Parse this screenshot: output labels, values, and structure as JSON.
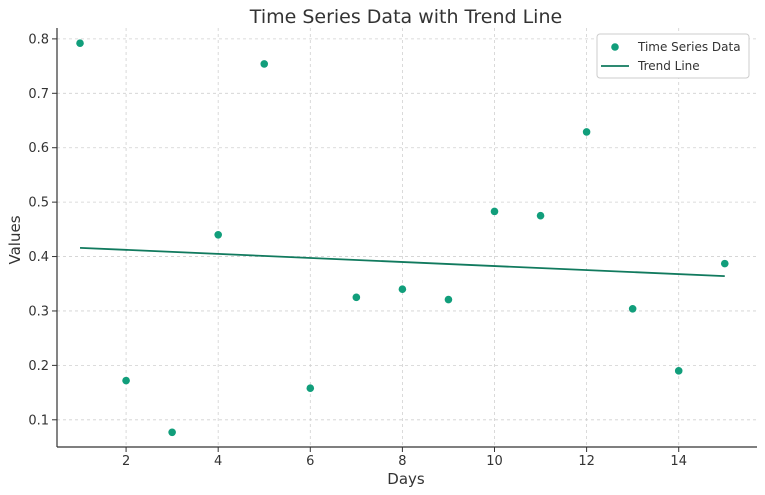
{
  "chart_data": {
    "type": "scatter",
    "title": "Time Series Data with Trend Line",
    "xlabel": "Days",
    "ylabel": "Values",
    "xlim": [
      0.5,
      15.7
    ],
    "ylim": [
      0.05,
      0.82
    ],
    "xticks": [
      2,
      4,
      6,
      8,
      10,
      12,
      14
    ],
    "yticks": [
      0.1,
      0.2,
      0.3,
      0.4,
      0.5,
      0.6,
      0.7,
      0.8
    ],
    "xtick_labels": [
      "2",
      "4",
      "6",
      "8",
      "10",
      "12",
      "14"
    ],
    "ytick_labels": [
      "0.1",
      "0.2",
      "0.3",
      "0.4",
      "0.5",
      "0.6",
      "0.7",
      "0.8"
    ],
    "grid": true,
    "legend_position": "top-right",
    "series": [
      {
        "name": "Time Series Data",
        "kind": "scatter",
        "color": "#119e7b",
        "x": [
          1,
          2,
          3,
          4,
          5,
          6,
          7,
          8,
          9,
          10,
          11,
          12,
          13,
          14,
          15
        ],
        "y": [
          0.792,
          0.172,
          0.077,
          0.44,
          0.754,
          0.158,
          0.325,
          0.34,
          0.321,
          0.483,
          0.475,
          0.629,
          0.304,
          0.19,
          0.387
        ]
      },
      {
        "name": "Trend Line",
        "kind": "line",
        "color": "#117a5e",
        "x": [
          1,
          15
        ],
        "y": [
          0.416,
          0.364
        ]
      }
    ]
  }
}
